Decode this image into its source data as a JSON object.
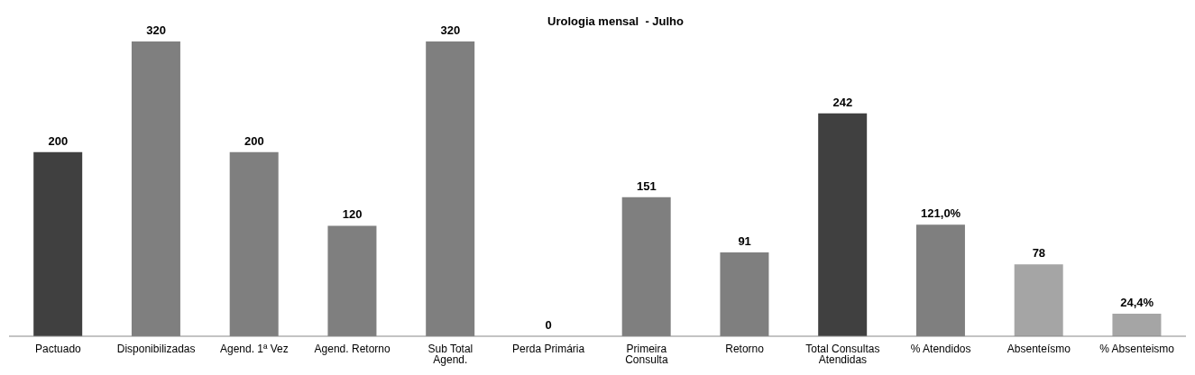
{
  "chart_data": {
    "type": "bar",
    "title": "Urologia mensal  - Julho",
    "categories": [
      "Pactuado",
      "Disponibilizadas",
      "Agend. 1ª Vez",
      "Agend. Retorno",
      "Sub Total Agend.",
      "Perda Primária",
      "Primeira Consulta",
      "Retorno",
      "Total Consultas Atendidas",
      "% Atendidos",
      "Absenteísmo",
      "% Absenteismo"
    ],
    "values": [
      200,
      320,
      200,
      120,
      320,
      0,
      151,
      91,
      242,
      121,
      78,
      24.4
    ],
    "value_labels": [
      "200",
      "320",
      "200",
      "120",
      "320",
      "0",
      "151",
      "91",
      "242",
      "121,0%",
      "78",
      "24,4%"
    ],
    "colors": [
      "#404040",
      "#7f7f7f",
      "#7f7f7f",
      "#7f7f7f",
      "#7f7f7f",
      "#7f7f7f",
      "#7f7f7f",
      "#7f7f7f",
      "#404040",
      "#7f7f7f",
      "#a5a5a5",
      "#a5a5a5"
    ],
    "grid": false,
    "legend": false
  }
}
